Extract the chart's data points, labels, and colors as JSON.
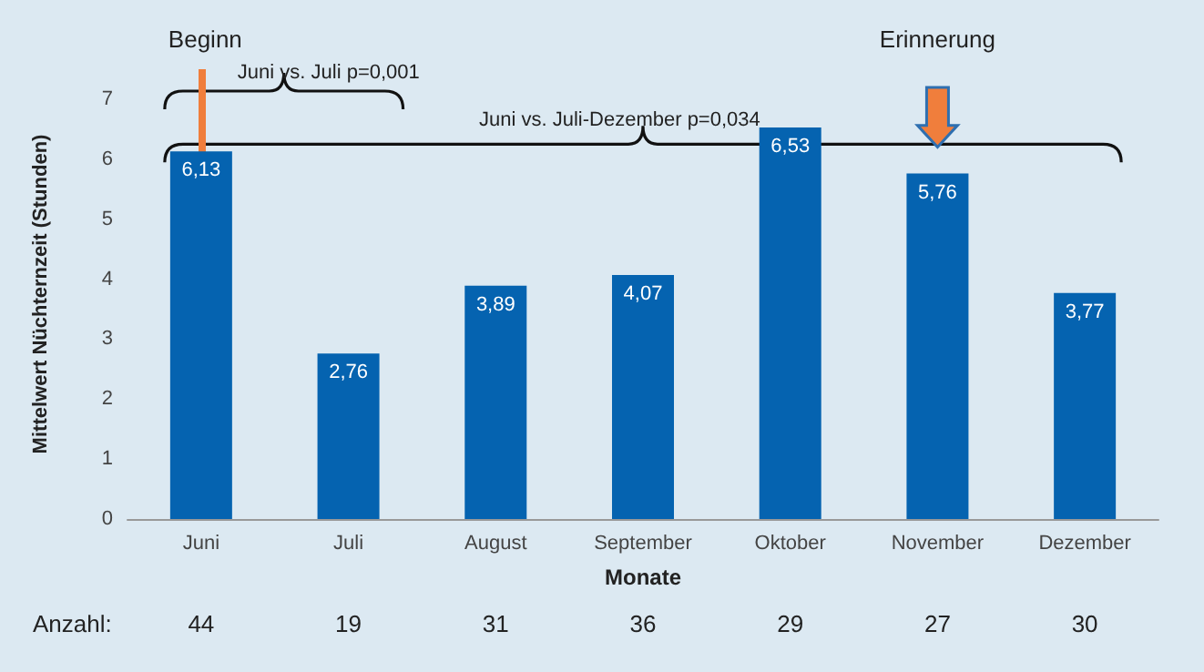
{
  "chart_data": {
    "type": "bar",
    "xlabel": "Monate",
    "ylabel": "Mittelwert Nüchternzeit (Stunden)",
    "categories": [
      "Juni",
      "Juli",
      "August",
      "September",
      "Oktober",
      "November",
      "Dezember"
    ],
    "values": [
      6.13,
      2.76,
      3.89,
      4.07,
      6.53,
      5.76,
      3.77
    ],
    "value_labels": [
      "6,13",
      "2,76",
      "3,89",
      "4,07",
      "6,53",
      "5,76",
      "3,77"
    ],
    "color": "#0563b0",
    "ylim": [
      0,
      7.5
    ],
    "yticks": [
      0,
      1,
      2,
      3,
      4,
      5,
      6,
      7
    ],
    "grid": false,
    "ref_lines": [
      {
        "axis": "x",
        "value": "Juni",
        "label": "Beginn",
        "color": "#f07e3c"
      }
    ],
    "annotations": [
      "Juni vs. Juli p=0,001",
      "Juni vs. Juli-Dezember p=0,034",
      "Erinnerung",
      "Anzahl:",
      "44",
      "19",
      "31",
      "36",
      "29",
      "27",
      "30"
    ]
  }
}
